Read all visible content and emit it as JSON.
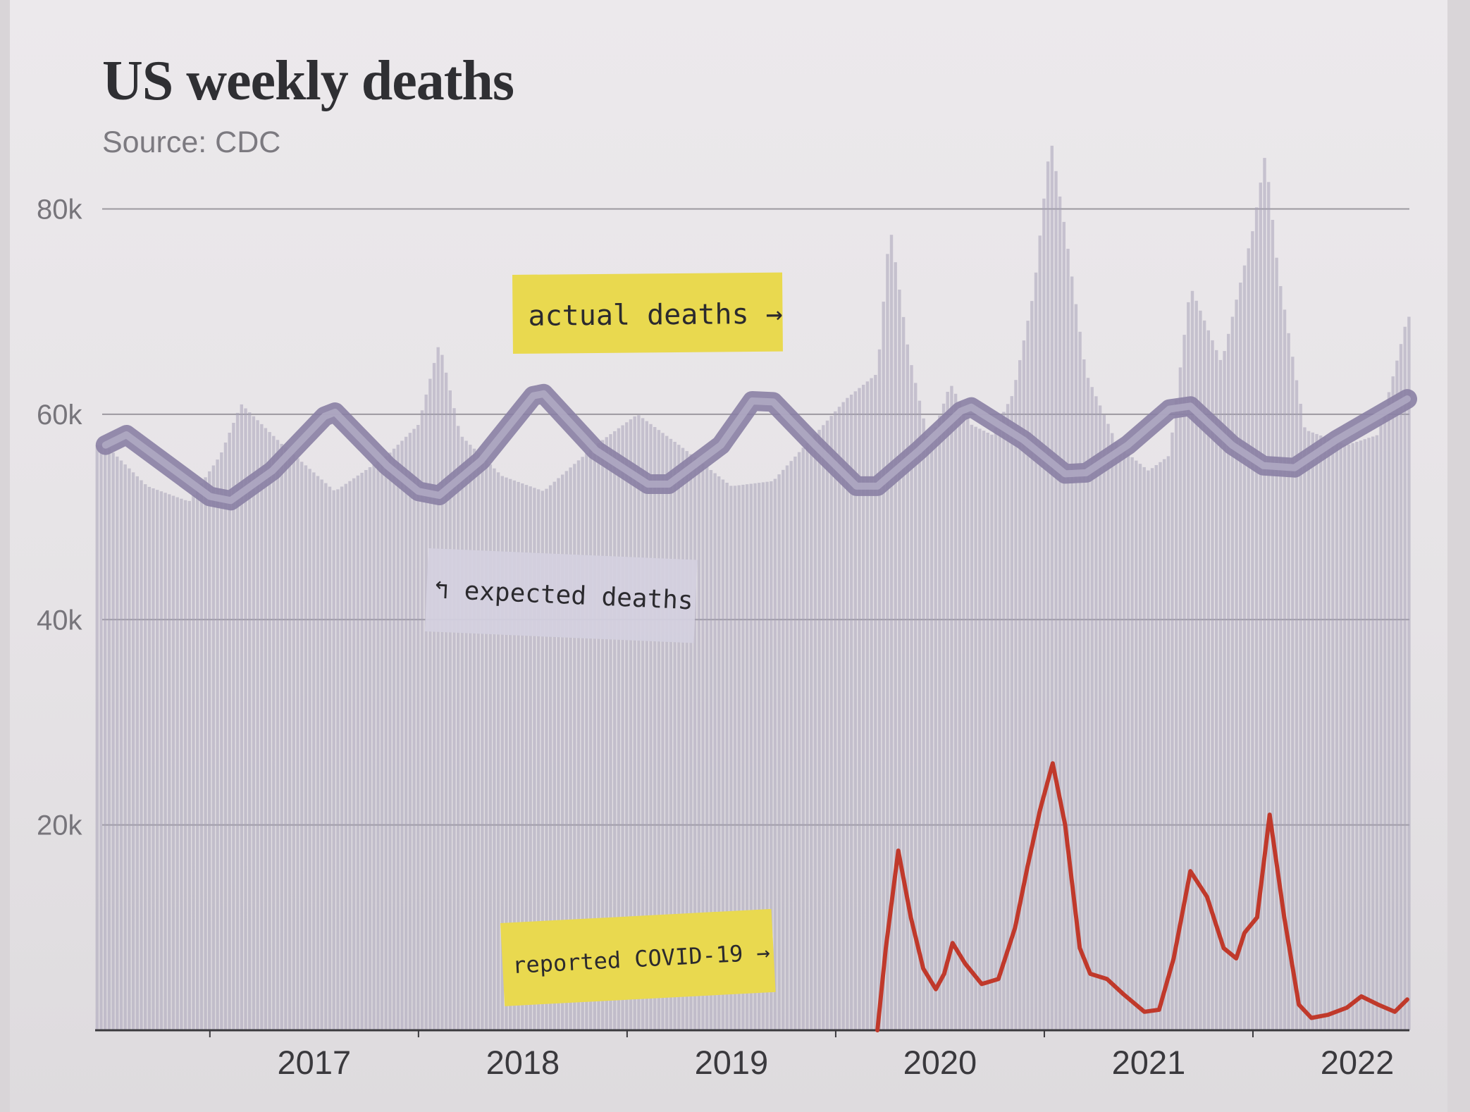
{
  "chart_data": {
    "type": "bar",
    "title": "US weekly deaths",
    "subtitle": "Source: CDC",
    "xlabel": "",
    "ylabel": "",
    "x_ticks": [
      "2017",
      "2018",
      "2019",
      "2020",
      "2021",
      "2022"
    ],
    "y_ticks": [
      "20k",
      "40k",
      "60k",
      "80k"
    ],
    "ylim": [
      0,
      80000
    ],
    "grid": true,
    "colors": {
      "actual": "#a8a3b8",
      "expected": "#8a80a4",
      "covid": "#c0392b",
      "sticky_yellow": "#e9d94f",
      "sticky_purple": "#d4d0e0"
    },
    "annotations": [
      {
        "text": "actual deaths →",
        "style": "yellow-sticky-note"
      },
      {
        "text": "↰ expected deaths",
        "style": "purple-sticky-note"
      },
      {
        "text": "reported COVID-19 →",
        "style": "yellow-sticky-note"
      }
    ],
    "series": [
      {
        "name": "actual deaths",
        "type": "bar",
        "points": [
          [
            2016.5,
            57000
          ],
          [
            2016.7,
            53000
          ],
          [
            2016.9,
            51500
          ],
          [
            2017.05,
            56000
          ],
          [
            2017.15,
            61000
          ],
          [
            2017.35,
            57000
          ],
          [
            2017.6,
            52500
          ],
          [
            2017.85,
            56000
          ],
          [
            2018.0,
            59000
          ],
          [
            2018.1,
            67000
          ],
          [
            2018.2,
            58000
          ],
          [
            2018.4,
            54000
          ],
          [
            2018.6,
            52500
          ],
          [
            2018.85,
            57000
          ],
          [
            2019.05,
            60000
          ],
          [
            2019.25,
            57000
          ],
          [
            2019.5,
            53000
          ],
          [
            2019.7,
            53500
          ],
          [
            2019.9,
            58000
          ],
          [
            2020.05,
            61500
          ],
          [
            2020.2,
            64000
          ],
          [
            2020.26,
            78500
          ],
          [
            2020.35,
            66000
          ],
          [
            2020.45,
            57000
          ],
          [
            2020.55,
            63000
          ],
          [
            2020.65,
            59000
          ],
          [
            2020.75,
            58000
          ],
          [
            2020.85,
            62000
          ],
          [
            2020.95,
            72000
          ],
          [
            2021.03,
            87000
          ],
          [
            2021.1,
            78000
          ],
          [
            2021.2,
            64000
          ],
          [
            2021.35,
            57000
          ],
          [
            2021.5,
            54500
          ],
          [
            2021.6,
            56000
          ],
          [
            2021.7,
            72500
          ],
          [
            2021.85,
            65000
          ],
          [
            2022.0,
            78000
          ],
          [
            2022.06,
            85500
          ],
          [
            2022.12,
            74000
          ],
          [
            2022.25,
            58500
          ],
          [
            2022.45,
            57000
          ],
          [
            2022.6,
            58000
          ],
          [
            2022.7,
            66000
          ],
          [
            2022.74,
            69500
          ]
        ]
      },
      {
        "name": "expected deaths",
        "type": "line",
        "points": [
          [
            2016.5,
            57000
          ],
          [
            2016.6,
            58000
          ],
          [
            2016.8,
            55000
          ],
          [
            2017.0,
            52000
          ],
          [
            2017.1,
            51600
          ],
          [
            2017.3,
            54500
          ],
          [
            2017.55,
            59800
          ],
          [
            2017.6,
            60200
          ],
          [
            2017.85,
            55000
          ],
          [
            2018.0,
            52500
          ],
          [
            2018.1,
            52100
          ],
          [
            2018.3,
            55500
          ],
          [
            2018.55,
            61800
          ],
          [
            2018.6,
            62000
          ],
          [
            2018.85,
            56500
          ],
          [
            2019.1,
            53200
          ],
          [
            2019.2,
            53200
          ],
          [
            2019.45,
            57000
          ],
          [
            2019.6,
            61300
          ],
          [
            2019.7,
            61200
          ],
          [
            2019.9,
            57000
          ],
          [
            2020.1,
            53000
          ],
          [
            2020.2,
            53000
          ],
          [
            2020.4,
            56500
          ],
          [
            2020.6,
            60300
          ],
          [
            2020.65,
            60700
          ],
          [
            2020.9,
            57500
          ],
          [
            2021.1,
            54200
          ],
          [
            2021.2,
            54300
          ],
          [
            2021.4,
            57000
          ],
          [
            2021.6,
            60500
          ],
          [
            2021.7,
            60800
          ],
          [
            2021.9,
            57000
          ],
          [
            2022.05,
            55000
          ],
          [
            2022.2,
            54800
          ],
          [
            2022.4,
            57500
          ],
          [
            2022.74,
            61500
          ]
        ]
      },
      {
        "name": "reported COVID-19",
        "type": "line",
        "points": [
          [
            2020.2,
            0
          ],
          [
            2020.24,
            8000
          ],
          [
            2020.3,
            17500
          ],
          [
            2020.36,
            11000
          ],
          [
            2020.42,
            6000
          ],
          [
            2020.48,
            4000
          ],
          [
            2020.52,
            5500
          ],
          [
            2020.56,
            8500
          ],
          [
            2020.62,
            6500
          ],
          [
            2020.7,
            4500
          ],
          [
            2020.78,
            5000
          ],
          [
            2020.86,
            10000
          ],
          [
            2020.92,
            16000
          ],
          [
            2020.98,
            21500
          ],
          [
            2021.04,
            26000
          ],
          [
            2021.1,
            20000
          ],
          [
            2021.17,
            8000
          ],
          [
            2021.22,
            5500
          ],
          [
            2021.3,
            5000
          ],
          [
            2021.38,
            3500
          ],
          [
            2021.48,
            1800
          ],
          [
            2021.55,
            2000
          ],
          [
            2021.62,
            7000
          ],
          [
            2021.7,
            15500
          ],
          [
            2021.78,
            13000
          ],
          [
            2021.86,
            8000
          ],
          [
            2021.92,
            7000
          ],
          [
            2021.96,
            9500
          ],
          [
            2022.02,
            11000
          ],
          [
            2022.08,
            21000
          ],
          [
            2022.15,
            11000
          ],
          [
            2022.22,
            2500
          ],
          [
            2022.28,
            1200
          ],
          [
            2022.36,
            1500
          ],
          [
            2022.45,
            2200
          ],
          [
            2022.52,
            3300
          ],
          [
            2022.6,
            2500
          ],
          [
            2022.68,
            1800
          ],
          [
            2022.74,
            3000
          ]
        ]
      }
    ]
  }
}
